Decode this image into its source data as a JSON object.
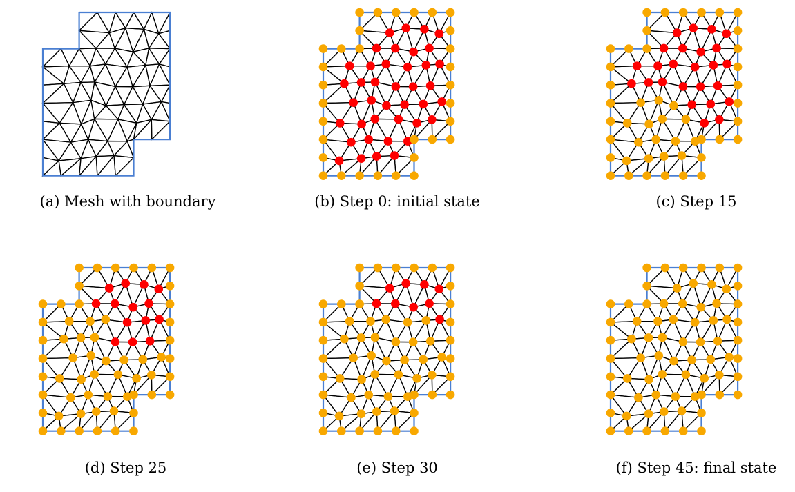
{
  "colors": {
    "boundary": "#4a7fd2",
    "edge": "#000000",
    "fixed_node": "#f8a800",
    "free_node": "#ff0000",
    "background": "#ffffff"
  },
  "panels": [
    {
      "id": "a",
      "caption": "(a) Mesh with boundary",
      "step": null,
      "show_nodes": false,
      "free_fraction": 0
    },
    {
      "id": "b",
      "caption": "(b) Step 0: initial state",
      "step": 0,
      "show_nodes": true,
      "free_fraction": 1.0
    },
    {
      "id": "c",
      "caption": "(c) Step 15",
      "step": 15,
      "show_nodes": true,
      "free_fraction": 0.62
    },
    {
      "id": "d",
      "caption": "(d) Step 25",
      "step": 25,
      "show_nodes": true,
      "free_fraction": 0.36
    },
    {
      "id": "e",
      "caption": "(e) Step 30",
      "step": 30,
      "show_nodes": true,
      "free_fraction": 0.22
    },
    {
      "id": "f",
      "caption": "(f) Step 45: final state",
      "step": 45,
      "show_nodes": true,
      "free_fraction": 0
    }
  ]
}
